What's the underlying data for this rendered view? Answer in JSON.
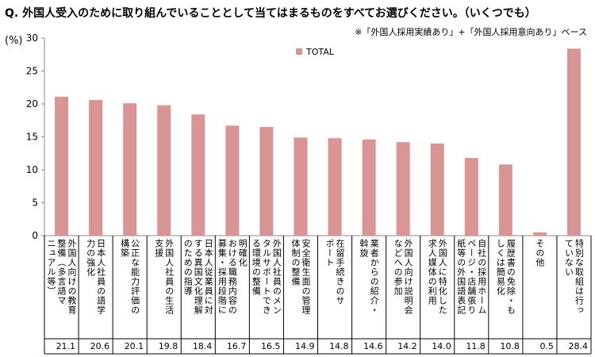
{
  "title": "Q. 外国人受入のために取り組んでいることとして当てはまるものをすべてお選びください。（いくつでも）",
  "note": "※「外国人採用実績あり」+「外国人採用意向あり」ベース",
  "y_unit": "(%)",
  "colors": {
    "bar": "#d99594",
    "axis": "#888888",
    "grid": "#000000"
  },
  "chart_data": {
    "type": "bar",
    "categories": [
      "外国人向けの教育\n整備（多言語マ\nニュアル等）",
      "日本人社員の語学\n力の強化",
      "公正な能力評価の\n構築",
      "外国人社員の生活\n支援",
      "日本人従業員に対\nする異国文化理解\nのための指導",
      "明確化\nおける職務内容の\n募集・採用段階に",
      "外国人社員のメン\nタルサポートでき\nる環境の整備",
      "安全衛生面の管理\n体制の整備",
      "在留手続きのサ\nポート",
      "業者からの紹介・\n斡旋",
      "外国人向け説明会\nなどへの参加",
      "外国人に特化した\n求人媒体の利用",
      "自社の採用ホーム\nページ・店舗張り\n紙等の外国語表記",
      "履歴書の免除・も\nしくは簡易化",
      "その他",
      "特別な取組は行っ\nていない"
    ],
    "series": [
      {
        "name": "TOTAL",
        "values": [
          21.1,
          20.6,
          20.1,
          19.8,
          18.4,
          16.7,
          16.5,
          14.9,
          14.8,
          14.6,
          14.2,
          14.0,
          11.8,
          10.8,
          0.5,
          28.4
        ]
      }
    ],
    "value_labels": [
      "21.1",
      "20.6",
      "20.1",
      "19.8",
      "18.4",
      "16.7",
      "16.5",
      "14.9",
      "14.8",
      "14.6",
      "14.2",
      "14.0",
      "11.8",
      "10.8",
      "0.5",
      "28.4"
    ],
    "ylim": [
      0,
      30
    ],
    "yticks": [
      0,
      5,
      10,
      15,
      20,
      25,
      30
    ],
    "legend_position": "top-left",
    "grid": false
  }
}
